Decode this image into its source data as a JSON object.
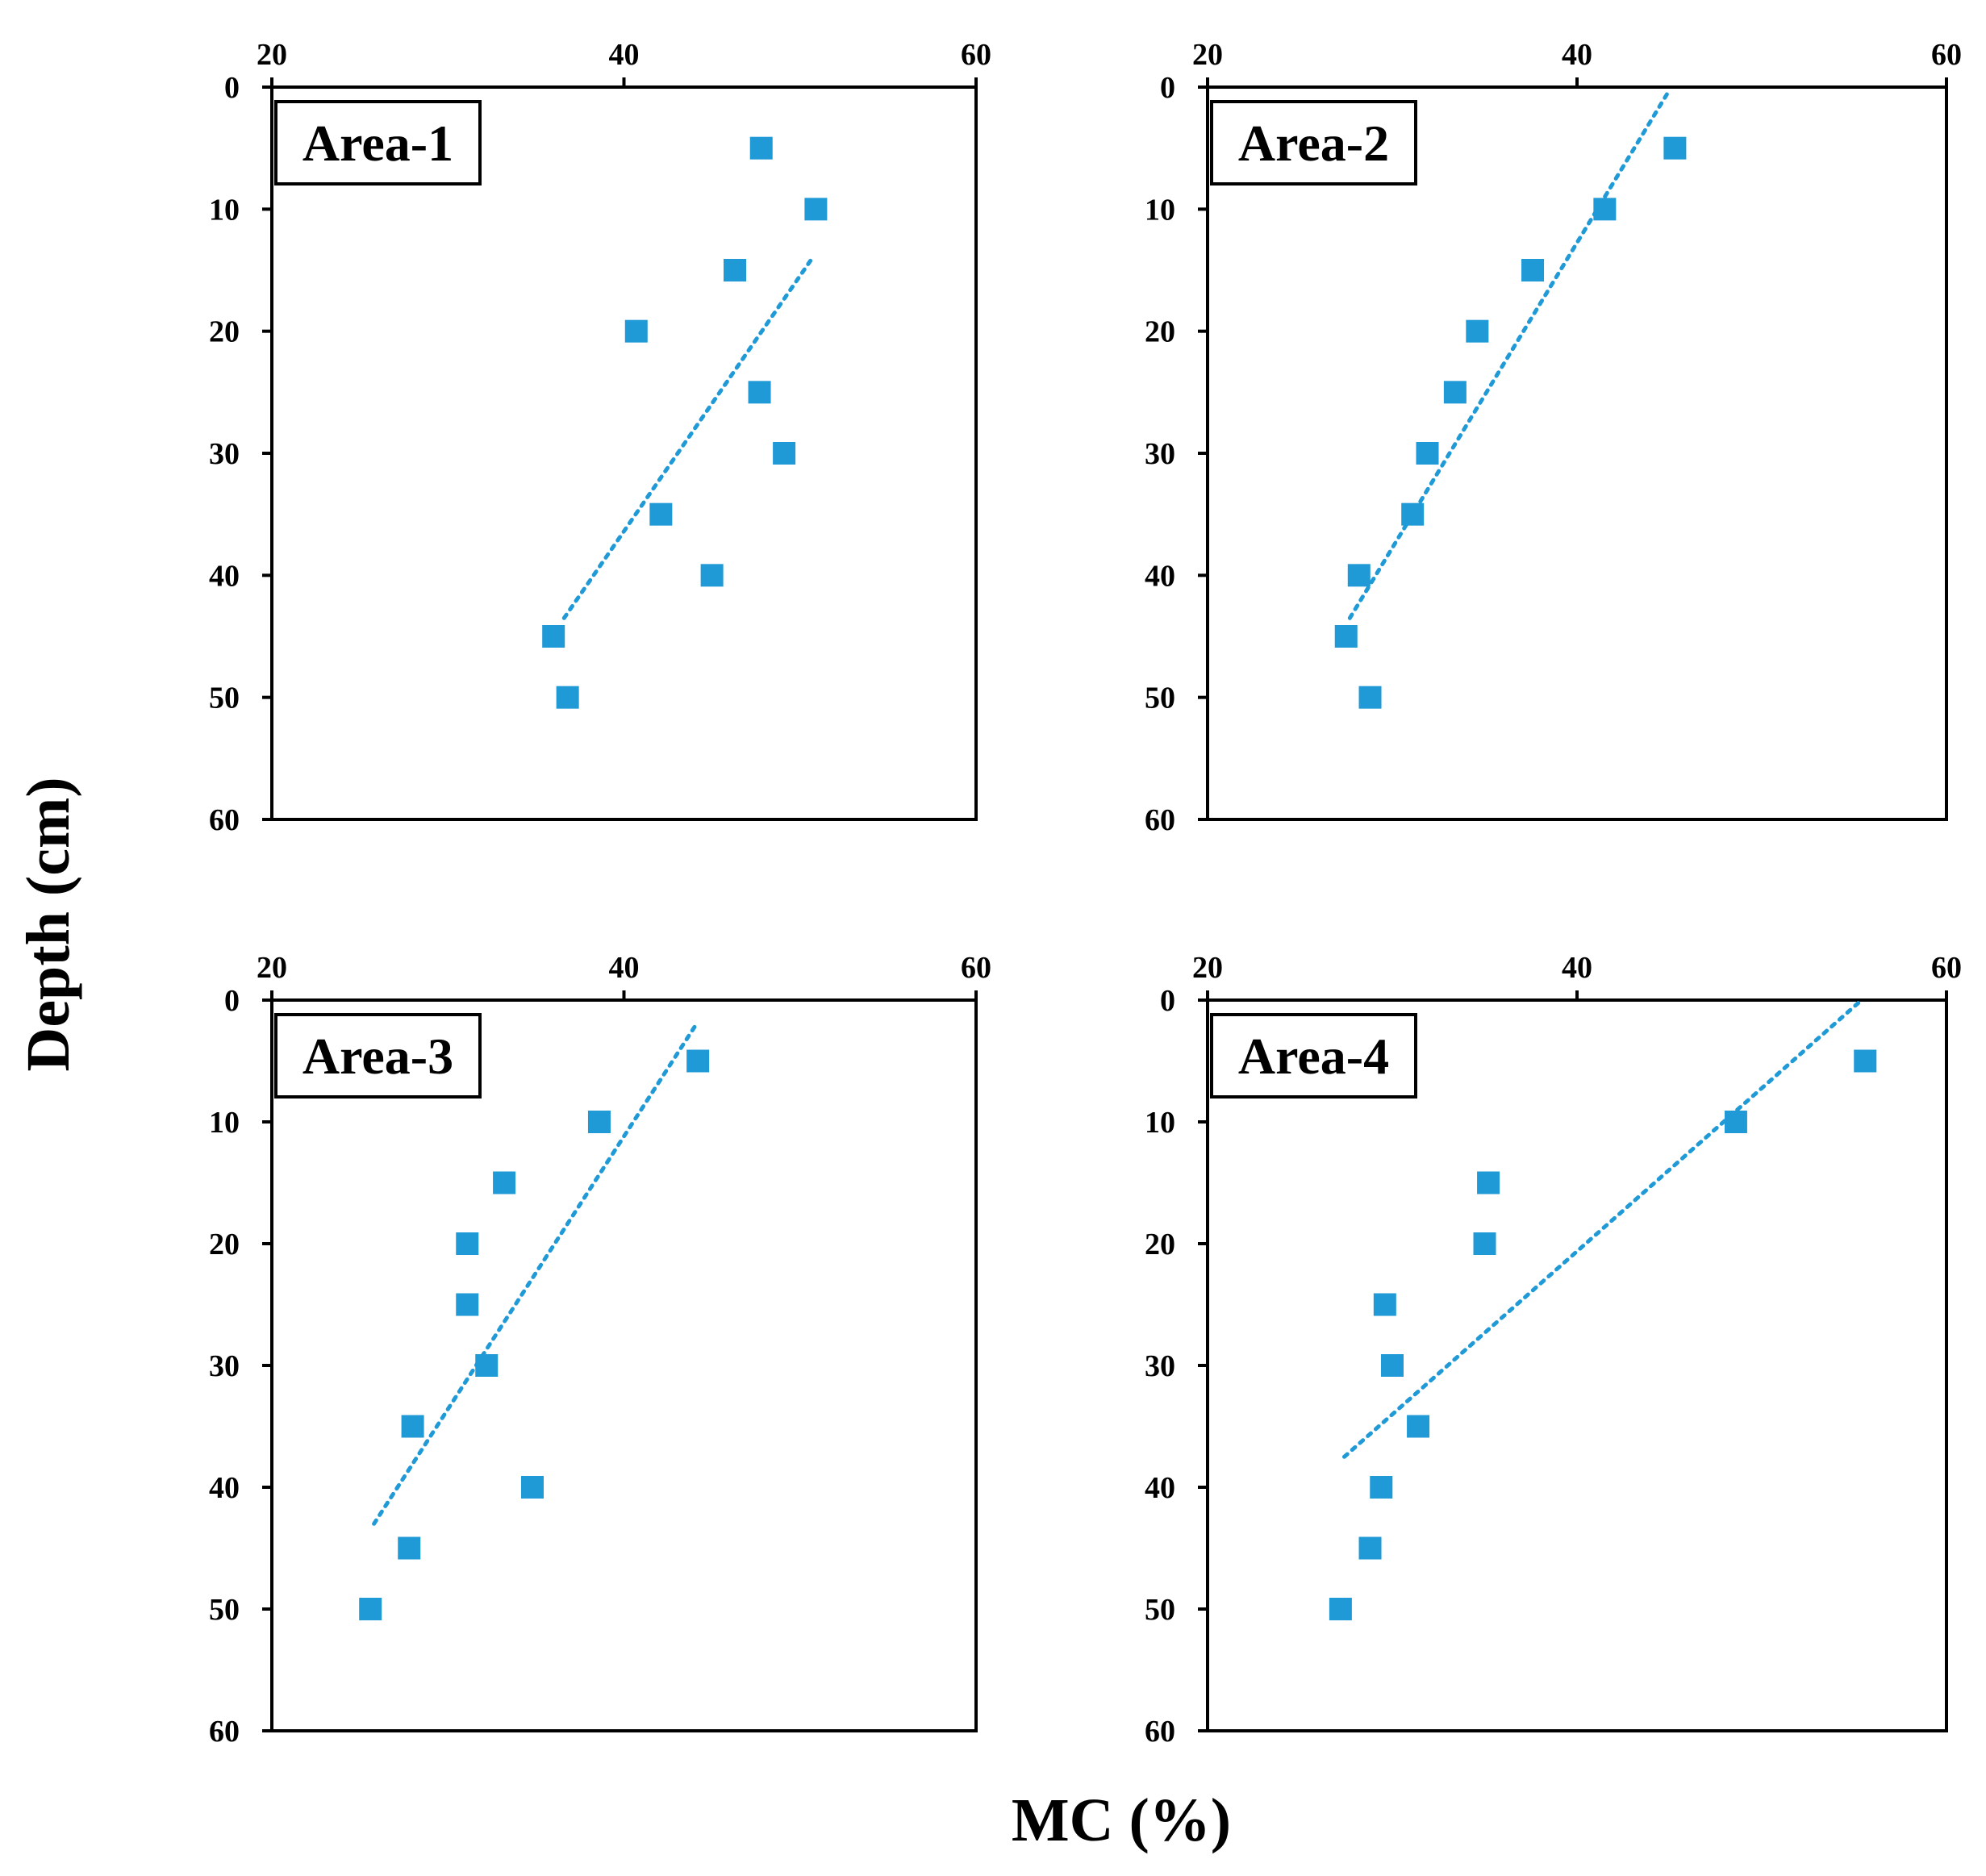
{
  "colors": {
    "marker": "#1f9ad6",
    "trend": "#1f9ad6",
    "axis": "#000000"
  },
  "chart_data": {
    "type": "scatter",
    "xlabel": "MC  (%)",
    "ylabel": "Depth (cm)",
    "xlim": [
      20,
      60
    ],
    "ylim": [
      0,
      60
    ],
    "x_ticks": [
      "20",
      "40",
      "60"
    ],
    "y_ticks": [
      "0",
      "10",
      "20",
      "30",
      "40",
      "50",
      "60"
    ],
    "x_axis_position": "top",
    "y_axis_inverted": true,
    "panels": [
      {
        "label": "Area-1",
        "points": [
          {
            "mc": 47.8,
            "depth": 5
          },
          {
            "mc": 50.9,
            "depth": 10
          },
          {
            "mc": 46.3,
            "depth": 15
          },
          {
            "mc": 40.7,
            "depth": 20
          },
          {
            "mc": 47.7,
            "depth": 25
          },
          {
            "mc": 49.1,
            "depth": 30
          },
          {
            "mc": 42.1,
            "depth": 35
          },
          {
            "mc": 45.0,
            "depth": 40
          },
          {
            "mc": 36.0,
            "depth": 45
          },
          {
            "mc": 36.8,
            "depth": 50
          }
        ],
        "trendline": [
          {
            "mc": 36.6,
            "depth": 43.5
          },
          {
            "mc": 50.7,
            "depth": 14
          }
        ]
      },
      {
        "label": "Area-2",
        "points": [
          {
            "mc": 45.3,
            "depth": 5
          },
          {
            "mc": 41.5,
            "depth": 10
          },
          {
            "mc": 37.6,
            "depth": 15
          },
          {
            "mc": 34.6,
            "depth": 20
          },
          {
            "mc": 33.4,
            "depth": 25
          },
          {
            "mc": 31.9,
            "depth": 30
          },
          {
            "mc": 31.1,
            "depth": 35
          },
          {
            "mc": 28.2,
            "depth": 40
          },
          {
            "mc": 27.5,
            "depth": 45
          },
          {
            "mc": 28.8,
            "depth": 50
          }
        ],
        "trendline": [
          {
            "mc": 27.7,
            "depth": 43.5
          },
          {
            "mc": 44.9,
            "depth": 0.5
          }
        ]
      },
      {
        "label": "Area-3",
        "points": [
          {
            "mc": 44.2,
            "depth": 5
          },
          {
            "mc": 38.6,
            "depth": 10
          },
          {
            "mc": 33.2,
            "depth": 15
          },
          {
            "mc": 31.1,
            "depth": 20
          },
          {
            "mc": 31.1,
            "depth": 25
          },
          {
            "mc": 32.2,
            "depth": 30
          },
          {
            "mc": 28.0,
            "depth": 35
          },
          {
            "mc": 34.8,
            "depth": 40
          },
          {
            "mc": 27.8,
            "depth": 45
          },
          {
            "mc": 25.6,
            "depth": 50
          }
        ],
        "trendline": [
          {
            "mc": 25.8,
            "depth": 43
          },
          {
            "mc": 44.1,
            "depth": 2
          }
        ]
      },
      {
        "label": "Area-4",
        "points": [
          {
            "mc": 55.6,
            "depth": 5
          },
          {
            "mc": 48.6,
            "depth": 10
          },
          {
            "mc": 35.2,
            "depth": 15
          },
          {
            "mc": 35.0,
            "depth": 20
          },
          {
            "mc": 29.6,
            "depth": 25
          },
          {
            "mc": 30.0,
            "depth": 30
          },
          {
            "mc": 31.4,
            "depth": 35
          },
          {
            "mc": 29.4,
            "depth": 40
          },
          {
            "mc": 28.8,
            "depth": 45
          },
          {
            "mc": 27.2,
            "depth": 50
          }
        ],
        "trendline": [
          {
            "mc": 27.4,
            "depth": 37.5
          },
          {
            "mc": 55.4,
            "depth": 0
          }
        ]
      }
    ]
  }
}
